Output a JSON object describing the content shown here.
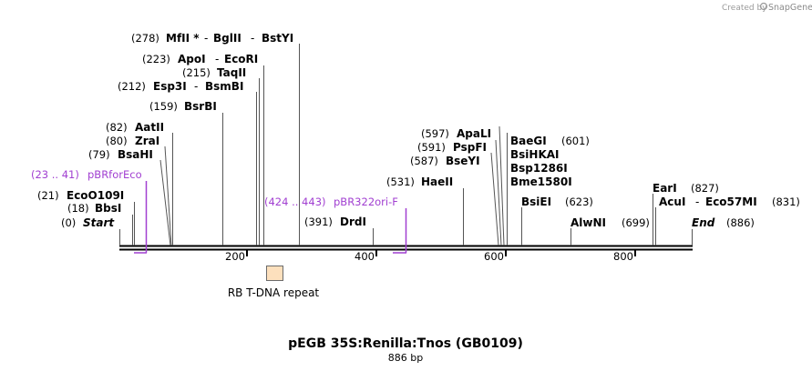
{
  "credit": {
    "created_by": "Created by",
    "brand": "SnapGene"
  },
  "map": {
    "title": "pEGB 35S:Renilla:Tnos (GB0109)",
    "length": "886 bp",
    "ruler": [
      "200",
      "400",
      "600",
      "800"
    ],
    "sites": [
      {
        "pos": "(0)",
        "names": [
          "Start"
        ],
        "emph": true
      },
      {
        "pos": "(18)",
        "names": [
          "BbsI"
        ]
      },
      {
        "pos": "(21)",
        "names": [
          "EcoO109I"
        ]
      },
      {
        "pos": "(79)",
        "names": [
          "BsaHI"
        ]
      },
      {
        "pos": "(80)",
        "names": [
          "ZraI"
        ]
      },
      {
        "pos": "(82)",
        "names": [
          "AatII"
        ]
      },
      {
        "pos": "(159)",
        "names": [
          "BsrBI"
        ]
      },
      {
        "pos": "(212)",
        "names": [
          "Esp3I",
          "BsmBI"
        ]
      },
      {
        "pos": "(215)",
        "names": [
          "TaqII"
        ]
      },
      {
        "pos": "(223)",
        "names": [
          "ApoI",
          "EcoRI"
        ]
      },
      {
        "pos": "(278)",
        "names": [
          "MfII *",
          "BglII",
          "BstYI"
        ]
      },
      {
        "pos": "(391)",
        "names": [
          "DrdI"
        ]
      },
      {
        "pos": "(531)",
        "names": [
          "HaeII"
        ]
      },
      {
        "pos": "(587)",
        "names": [
          "BseYI"
        ]
      },
      {
        "pos": "(591)",
        "names": [
          "PspFI"
        ]
      },
      {
        "pos": "(597)",
        "names": [
          "ApaLI"
        ]
      },
      {
        "pos": "(601)",
        "names": [
          "BaeGI",
          "BsiHKAI",
          "Bsp1286I",
          "Bme1580I"
        ]
      },
      {
        "pos": "(623)",
        "names": [
          "BsiEI"
        ]
      },
      {
        "pos": "(699)",
        "names": [
          "AlwNI"
        ]
      },
      {
        "pos": "(827)",
        "names": [
          "EarI"
        ]
      },
      {
        "pos": "(831)",
        "names": [
          "AcuI",
          "Eco57MI"
        ]
      },
      {
        "pos": "(886)",
        "names": [
          "End"
        ],
        "emph": true
      }
    ],
    "primers": [
      {
        "range": "(23 .. 41)",
        "name": "pBRforEco",
        "color": "#a13fd1"
      },
      {
        "range": "(424 .. 443)",
        "name": "pBR322ori-F",
        "color": "#a13fd1"
      }
    ],
    "feature": {
      "name": "RB T-DNA repeat",
      "fill": "#fde0bd",
      "stroke": "#6b6b6b"
    }
  }
}
